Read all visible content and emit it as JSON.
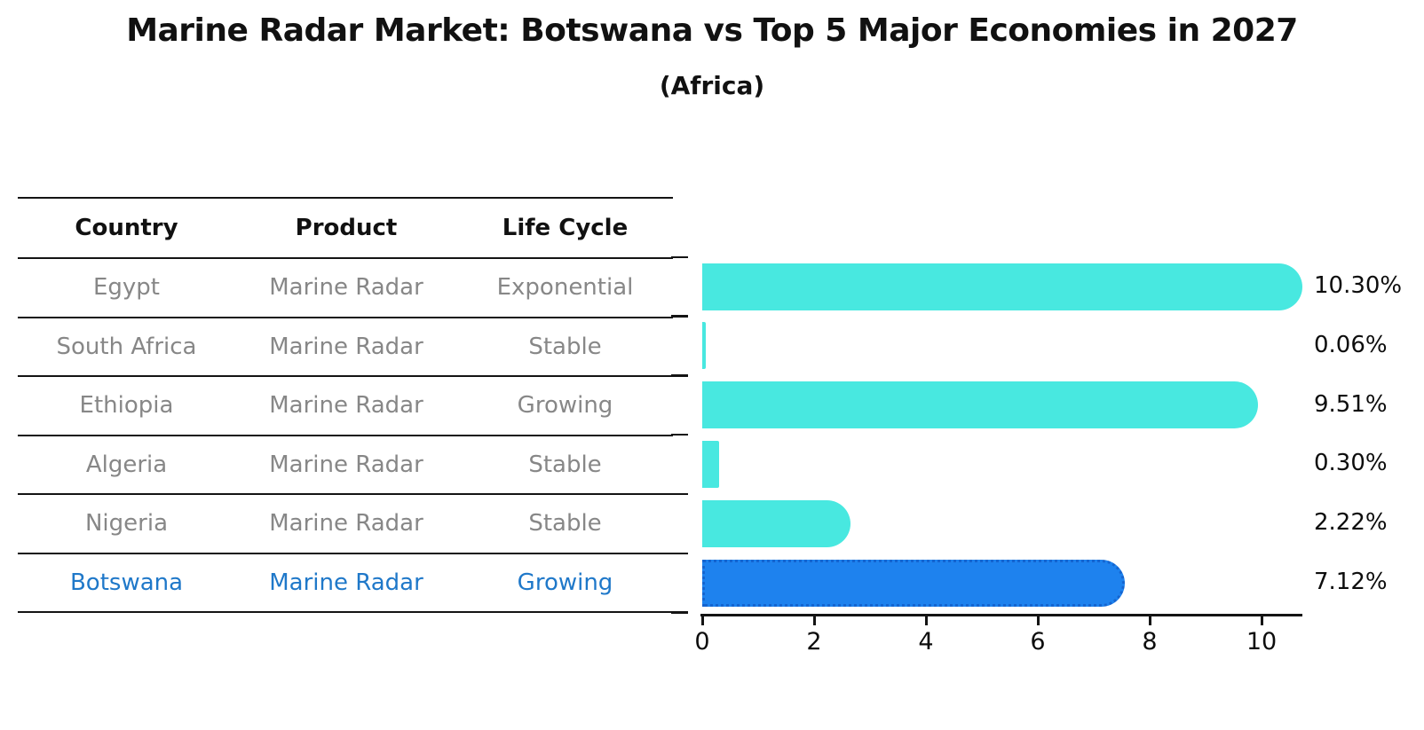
{
  "title": "Marine Radar Market: Botswana vs Top 5 Major Economies in 2027",
  "subtitle": "(Africa)",
  "table": {
    "headers": [
      "Country",
      "Product",
      "Life Cycle"
    ],
    "rows": [
      {
        "country": "Egypt",
        "product": "Marine Radar",
        "life_cycle": "Exponential",
        "highlight": false
      },
      {
        "country": "South Africa",
        "product": "Marine Radar",
        "life_cycle": "Stable",
        "highlight": false
      },
      {
        "country": "Ethiopia",
        "product": "Marine Radar",
        "life_cycle": "Growing",
        "highlight": false
      },
      {
        "country": "Algeria",
        "product": "Marine Radar",
        "life_cycle": "Stable",
        "highlight": false
      },
      {
        "country": "Nigeria",
        "product": "Marine Radar",
        "life_cycle": "Stable",
        "highlight": false
      },
      {
        "country": "Botswana",
        "product": "Marine Radar",
        "life_cycle": "Growing",
        "highlight": true
      }
    ]
  },
  "chart_data": {
    "type": "bar",
    "orientation": "horizontal",
    "title": "Marine Radar Market: Botswana vs Top 5 Major Economies in 2027",
    "subtitle": "(Africa)",
    "categories": [
      "Egypt",
      "South Africa",
      "Ethiopia",
      "Algeria",
      "Nigeria",
      "Botswana"
    ],
    "values": [
      10.3,
      0.06,
      9.51,
      0.3,
      2.22,
      7.12
    ],
    "value_labels": [
      "10.30%",
      "0.06%",
      "9.51%",
      "0.30%",
      "2.22%",
      "7.12%"
    ],
    "xticks": [
      0,
      2,
      4,
      6,
      8,
      10
    ],
    "xlim": [
      0,
      10.75
    ],
    "grid": false,
    "legend": "none",
    "highlight_index": 5
  },
  "colors": {
    "bar_default": "#48e8e0",
    "bar_highlight": "#1e82ee",
    "bar_highlight_edge": "#1565d0",
    "highlight_text": "#1f78c9",
    "row_text": "#878787",
    "axis": "#141414"
  }
}
